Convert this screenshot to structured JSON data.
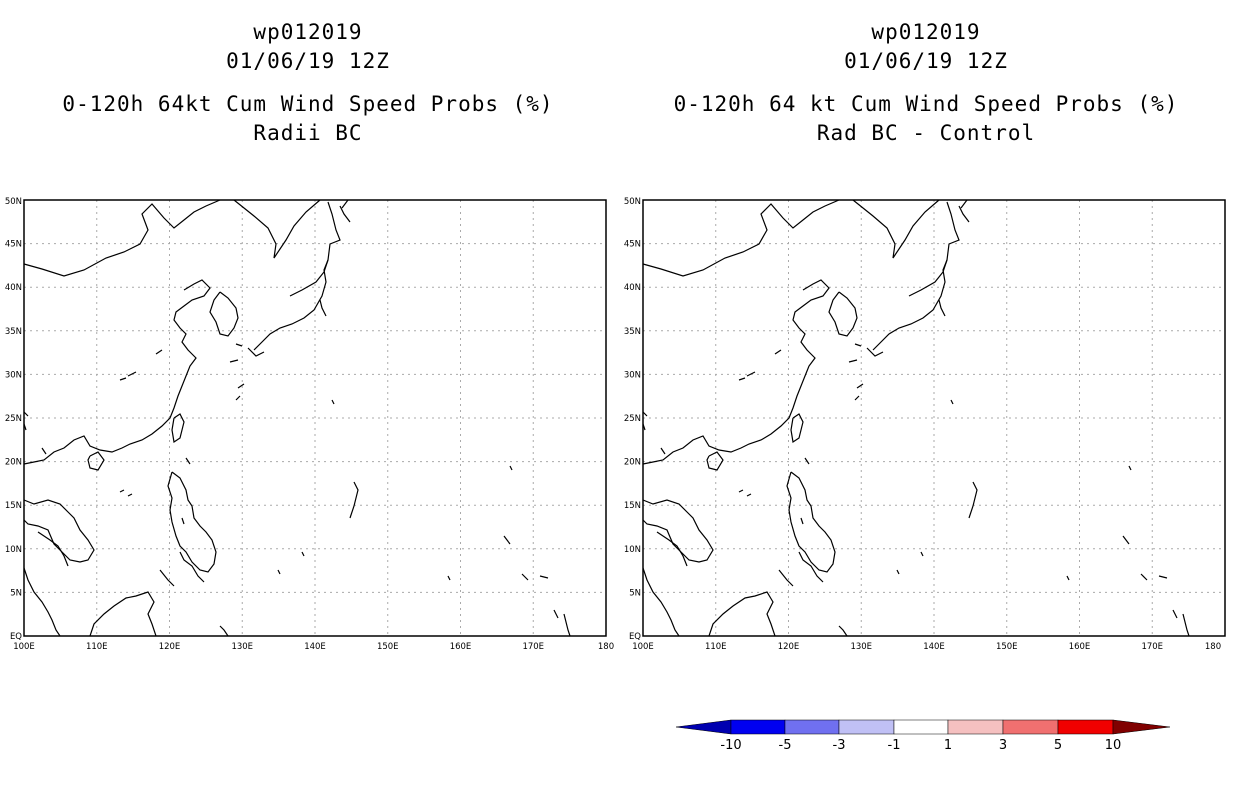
{
  "panels": [
    {
      "storm_id": "wp012019",
      "datetime": "01/06/19 12Z",
      "product": "0-120h 64kt Cum Wind Speed Probs (%)",
      "subtitle": "Radii BC"
    },
    {
      "storm_id": "wp012019",
      "datetime": "01/06/19 12Z",
      "product": "0-120h 64 kt Cum Wind Speed Probs (%)",
      "subtitle": "Rad BC - Control"
    }
  ],
  "map": {
    "lat_labels": [
      "EQ",
      "5N",
      "10N",
      "15N",
      "20N",
      "25N",
      "30N",
      "35N",
      "40N",
      "45N",
      "50N"
    ],
    "lon_labels": [
      "100E",
      "110E",
      "120E",
      "130E",
      "140E",
      "150E",
      "160E",
      "170E",
      "180"
    ],
    "lat_range": [
      0,
      50
    ],
    "lon_range": [
      100,
      180
    ],
    "coast_color": "#000000",
    "grid_color": "#aaaaaa"
  },
  "colorbar": {
    "labels": [
      "-10",
      "-5",
      "-3",
      "-1",
      "1",
      "3",
      "5",
      "10"
    ],
    "colors": [
      "#0000b0",
      "#0000f0",
      "#7070f0",
      "#c0c0f5",
      "#ffffff",
      "#f5c0c0",
      "#f07070",
      "#f00000",
      "#800000"
    ]
  }
}
